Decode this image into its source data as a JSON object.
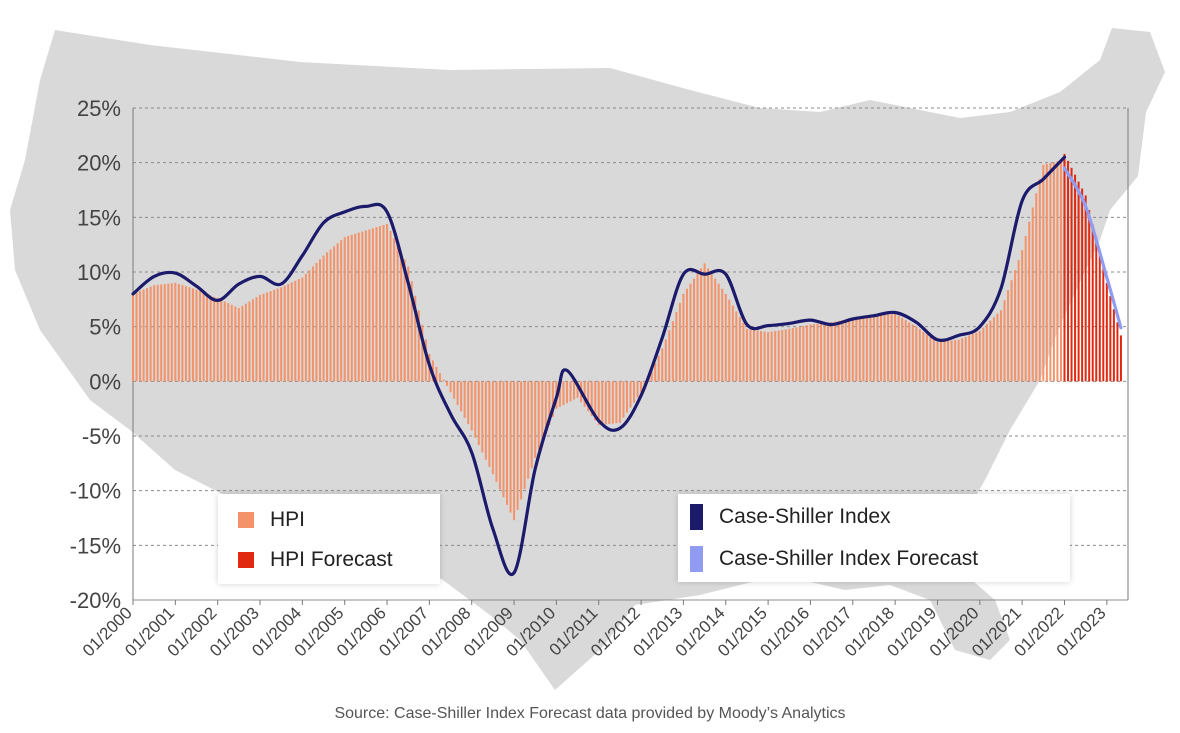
{
  "chart_data": {
    "type": "bar",
    "source": "Source: Case-Shiller Index Forecast data provided by Moody’s Analytics",
    "ylim": [
      -20,
      25
    ],
    "y_ticks": [
      "25%",
      "20%",
      "15%",
      "10%",
      "5%",
      "0%",
      "-5%",
      "-10%",
      "-15%",
      "-20%"
    ],
    "x_ticks": [
      "01/2000",
      "01/2001",
      "01/2002",
      "01/2003",
      "01/2004",
      "01/2005",
      "01/2006",
      "01/2007",
      "01/2008",
      "01/2009",
      "01/2010",
      "01/2011",
      "01/2012",
      "01/2013",
      "01/2014",
      "01/2015",
      "01/2016",
      "01/2017",
      "01/2018",
      "01/2019",
      "01/2020",
      "01/2021",
      "01/2022",
      "01/2023"
    ],
    "grid": true,
    "legend": {
      "left": [
        {
          "label": "HPI",
          "color": "#f4936a"
        },
        {
          "label": "HPI Forecast",
          "color": "#e0290f"
        }
      ],
      "right": [
        {
          "label": "Case-Shiller Index",
          "color": "#1b1a6b"
        },
        {
          "label": "Case-Shiller Index Forecast",
          "color": "#8f9cf2"
        }
      ]
    },
    "colors": {
      "hpi": "#f4936a",
      "hpi_forecast": "#e0290f",
      "case_shiller": "#1b1a6b",
      "case_shiller_forecast": "#8f9cf2",
      "map": "#d9d9d9",
      "grid": "#8c8c8c"
    },
    "series": [
      {
        "name": "HPI",
        "type": "bar",
        "points": [
          [
            "01/2000",
            8.0
          ],
          [
            "07/2000",
            8.8
          ],
          [
            "01/2001",
            9.0
          ],
          [
            "07/2001",
            8.4
          ],
          [
            "01/2002",
            7.6
          ],
          [
            "07/2002",
            6.7
          ],
          [
            "01/2003",
            7.9
          ],
          [
            "07/2003",
            8.6
          ],
          [
            "01/2004",
            9.5
          ],
          [
            "07/2004",
            11.5
          ],
          [
            "01/2005",
            13.2
          ],
          [
            "07/2005",
            13.8
          ],
          [
            "01/2006",
            14.4
          ],
          [
            "07/2006",
            10.5
          ],
          [
            "01/2007",
            2.5
          ],
          [
            "07/2007",
            -1.0
          ],
          [
            "01/2008",
            -4.5
          ],
          [
            "07/2008",
            -8.5
          ],
          [
            "01/2009",
            -12.7
          ],
          [
            "07/2009",
            -7.0
          ],
          [
            "01/2010",
            -2.5
          ],
          [
            "07/2010",
            -1.5
          ],
          [
            "01/2011",
            -4.0
          ],
          [
            "07/2011",
            -3.8
          ],
          [
            "01/2012",
            -1.0
          ],
          [
            "07/2012",
            3.0
          ],
          [
            "01/2013",
            8.0
          ],
          [
            "07/2013",
            10.8
          ],
          [
            "01/2014",
            8.0
          ],
          [
            "07/2014",
            4.8
          ],
          [
            "01/2015",
            4.5
          ],
          [
            "07/2015",
            4.8
          ],
          [
            "01/2016",
            5.2
          ],
          [
            "07/2016",
            5.4
          ],
          [
            "01/2017",
            5.8
          ],
          [
            "07/2017",
            6.0
          ],
          [
            "01/2018",
            6.2
          ],
          [
            "07/2018",
            5.0
          ],
          [
            "01/2019",
            3.6
          ],
          [
            "07/2019",
            3.8
          ],
          [
            "01/2020",
            4.6
          ],
          [
            "07/2020",
            6.5
          ],
          [
            "01/2021",
            12.0
          ],
          [
            "07/2021",
            19.8
          ],
          [
            "01/2022",
            20.3
          ]
        ]
      },
      {
        "name": "HPI Forecast",
        "type": "bar",
        "points": [
          [
            "01/2022",
            20.8
          ],
          [
            "07/2022",
            17.0
          ],
          [
            "01/2023",
            9.0
          ],
          [
            "05/2023",
            4.2
          ]
        ]
      },
      {
        "name": "Case-Shiller Index",
        "type": "line",
        "points": [
          [
            "01/2000",
            8.0
          ],
          [
            "07/2000",
            9.6
          ],
          [
            "01/2001",
            9.9
          ],
          [
            "07/2001",
            8.7
          ],
          [
            "01/2002",
            7.4
          ],
          [
            "07/2002",
            8.9
          ],
          [
            "01/2003",
            9.6
          ],
          [
            "07/2003",
            8.9
          ],
          [
            "01/2004",
            11.5
          ],
          [
            "07/2004",
            14.5
          ],
          [
            "01/2005",
            15.5
          ],
          [
            "07/2005",
            16.0
          ],
          [
            "01/2006",
            15.5
          ],
          [
            "07/2006",
            9.0
          ],
          [
            "01/2007",
            1.5
          ],
          [
            "07/2007",
            -3.0
          ],
          [
            "01/2008",
            -6.5
          ],
          [
            "07/2008",
            -13.5
          ],
          [
            "01/2009",
            -17.5
          ],
          [
            "07/2009",
            -8.0
          ],
          [
            "01/2010",
            -1.5
          ],
          [
            "04/2010",
            1.0
          ],
          [
            "01/2011",
            -3.6
          ],
          [
            "07/2011",
            -4.3
          ],
          [
            "01/2012",
            -1.3
          ],
          [
            "07/2012",
            4.0
          ],
          [
            "01/2013",
            9.8
          ],
          [
            "07/2013",
            9.8
          ],
          [
            "01/2014",
            9.8
          ],
          [
            "07/2014",
            5.2
          ],
          [
            "01/2015",
            5.1
          ],
          [
            "07/2015",
            5.3
          ],
          [
            "01/2016",
            5.6
          ],
          [
            "07/2016",
            5.2
          ],
          [
            "01/2017",
            5.7
          ],
          [
            "07/2017",
            6.0
          ],
          [
            "01/2018",
            6.3
          ],
          [
            "07/2018",
            5.4
          ],
          [
            "01/2019",
            3.8
          ],
          [
            "07/2019",
            4.2
          ],
          [
            "01/2020",
            5.0
          ],
          [
            "07/2020",
            8.5
          ],
          [
            "01/2021",
            16.5
          ],
          [
            "07/2021",
            18.5
          ],
          [
            "01/2022",
            20.5
          ]
        ]
      },
      {
        "name": "Case-Shiller Index Forecast",
        "type": "line",
        "points": [
          [
            "01/2022",
            19.5
          ],
          [
            "07/2022",
            16.0
          ],
          [
            "01/2023",
            9.5
          ],
          [
            "05/2023",
            4.9
          ]
        ]
      }
    ]
  }
}
